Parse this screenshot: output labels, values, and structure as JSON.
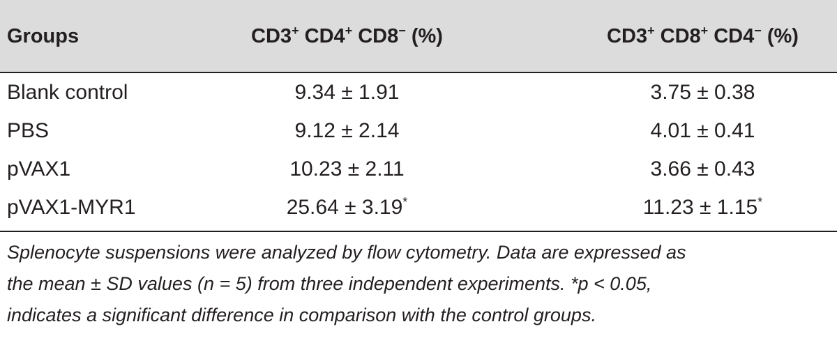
{
  "table": {
    "headers": {
      "groups": "Groups",
      "col1": {
        "parts": [
          "CD3",
          "+",
          " CD4",
          "+",
          " CD8",
          "−",
          " (%)"
        ]
      },
      "col2": {
        "parts": [
          "CD3",
          "+",
          " CD8",
          "+",
          " CD4",
          "−",
          " (%)"
        ]
      }
    },
    "rows": [
      {
        "group": "Blank control",
        "cd4": "9.34 ± 1.91",
        "cd4_mark": "",
        "cd8": "3.75 ± 0.38",
        "cd8_mark": ""
      },
      {
        "group": "PBS",
        "cd4": "9.12 ± 2.14",
        "cd4_mark": "",
        "cd8": "4.01 ± 0.41",
        "cd8_mark": ""
      },
      {
        "group": "pVAX1",
        "cd4": "10.23 ± 2.11",
        "cd4_mark": "",
        "cd8": "3.66 ± 0.43",
        "cd8_mark": ""
      },
      {
        "group": "pVAX1-MYR1",
        "cd4": "25.64 ± 3.19",
        "cd4_mark": "*",
        "cd8": "11.23 ± 1.15",
        "cd8_mark": "*"
      }
    ]
  },
  "footnote": {
    "lines": [
      "Splenocyte suspensions were analyzed by flow cytometry. Data are expressed as",
      "the mean ± SD values (n = 5) from three independent experiments. *p < 0.05,",
      "indicates a significant difference in comparison with the control groups."
    ]
  }
}
